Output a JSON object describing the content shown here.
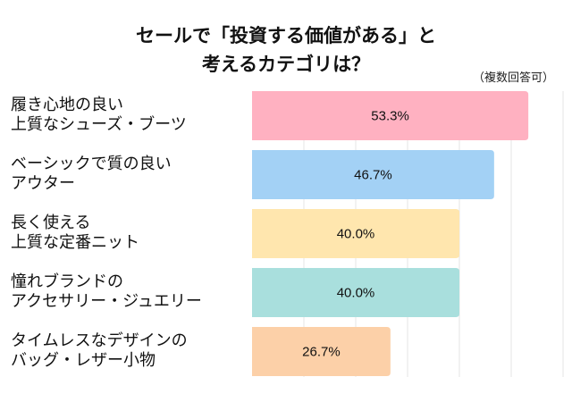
{
  "chart_data": {
    "type": "bar",
    "orientation": "horizontal",
    "title": [
      "セールで「投資する価値がある」と",
      "考えるカテゴリは？"
    ],
    "note": "（複数回答可）",
    "categories": [
      [
        "履き心地の良い",
        "上質なシューズ・ブーツ"
      ],
      [
        "ベーシックで質の良い",
        "アウター"
      ],
      [
        "長く使える",
        "上質な定番ニット"
      ],
      [
        "憧れブランドの",
        "アクセサリー・ジュエリー"
      ],
      [
        "タイムレスなデザインの",
        "バッグ・レザー小物"
      ]
    ],
    "values": [
      53.3,
      46.7,
      40.0,
      40.0,
      26.7
    ],
    "data_labels": [
      "53.3%",
      "46.7%",
      "40.0%",
      "40.0%",
      "26.7%"
    ],
    "colors": [
      "#FFB1C1",
      "#A3D1F5",
      "#FFE6AE",
      "#A9DFDD",
      "#FCD0A8"
    ],
    "xlim": [
      0,
      60
    ],
    "grid_step": 10,
    "grid": true,
    "unit": "%"
  }
}
